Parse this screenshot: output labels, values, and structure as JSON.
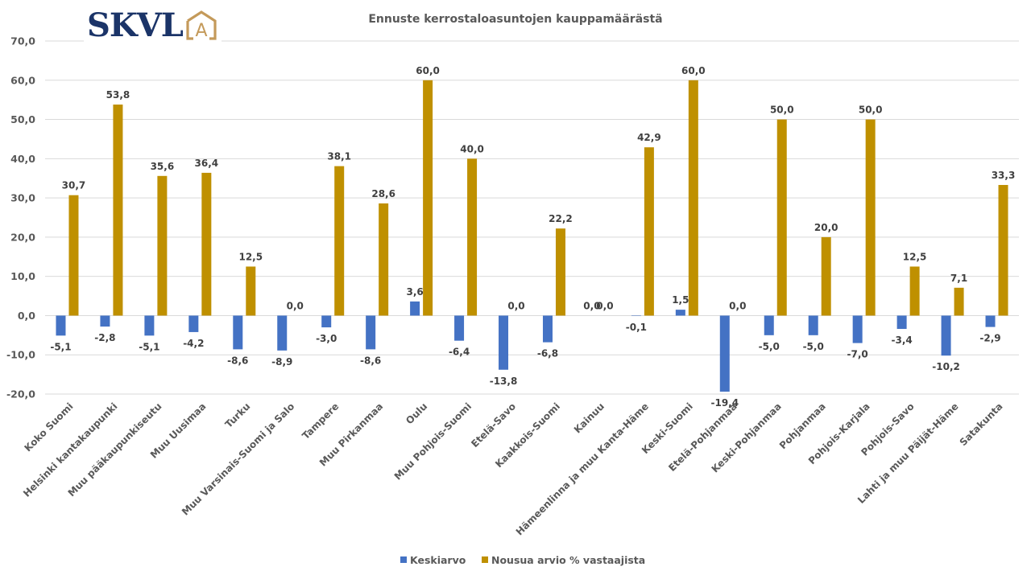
{
  "logo": {
    "text": "SKVL",
    "mark_letter": "A",
    "text_color": "#1b3468",
    "mark_color": "#c49a5a"
  },
  "chart_data": {
    "type": "bar",
    "title": "Ennuste kerrostaloasuntojen kauppamäärästä",
    "xlabel": "",
    "ylabel": "",
    "ylim": [
      -20,
      70
    ],
    "yticks": [
      -20,
      -10,
      0,
      10,
      20,
      30,
      40,
      50,
      60,
      70
    ],
    "ytick_labels": [
      "-20,0",
      "-10,0",
      "0,0",
      "10,0",
      "20,0",
      "30,0",
      "40,0",
      "50,0",
      "60,0",
      "70,0"
    ],
    "grid": true,
    "legend_position": "bottom",
    "categories": [
      "Koko Suomi",
      "Helsinki kantakaupunki",
      "Muu pääkaupunkiseutu",
      "Muu Uusimaa",
      "Turku",
      "Muu Varsinais-Suomi ja Salo",
      "Tampere",
      "Muu Pirkanmaa",
      "Oulu",
      "Muu Pohjois-Suomi",
      "Etelä-Savo",
      "Kaakkois-Suomi",
      "Kainuu",
      "Hämeenlinna ja muu Kanta-Häme",
      "Keski-Suomi",
      "Etelä-Pohjanmaa",
      "Keski-Pohjanmaa",
      "Pohjanmaa",
      "Pohjois-Karjala",
      "Pohjois-Savo",
      "Lahti ja muu Päijät-Häme",
      "Satakunta"
    ],
    "series": [
      {
        "name": "Keskiarvo",
        "color": "#4472c4",
        "values": [
          -5.1,
          -2.8,
          -5.1,
          -4.2,
          -8.6,
          -8.9,
          -3.0,
          -8.6,
          3.6,
          -6.4,
          -13.8,
          -6.8,
          0.0,
          -0.1,
          1.5,
          -19.4,
          -5.0,
          -5.0,
          -7.0,
          -3.4,
          -10.2,
          -2.9
        ],
        "labels": [
          "-5,1",
          "-2,8",
          "-5,1",
          "-4,2",
          "-8,6",
          "-8,9",
          "-3,0",
          "-8,6",
          "3,6",
          "-6,4",
          "-13,8",
          "-6,8",
          "0,0",
          "-0,1",
          "1,5",
          "-19,4",
          "-5,0",
          "-5,0",
          "-7,0",
          "-3,4",
          "-10,2",
          "-2,9"
        ]
      },
      {
        "name": "Nousua arvio % vastaajista",
        "color": "#bf9000",
        "values": [
          30.7,
          53.8,
          35.6,
          36.4,
          12.5,
          0.0,
          38.1,
          28.6,
          60.0,
          40.0,
          0.0,
          22.2,
          0.0,
          42.9,
          60.0,
          0.0,
          50.0,
          20.0,
          50.0,
          12.5,
          7.1,
          33.3
        ],
        "labels": [
          "30,7",
          "53,8",
          "35,6",
          "36,4",
          "12,5",
          "0,0",
          "38,1",
          "28,6",
          "60,0",
          "40,0",
          "0,0",
          "22,2",
          "0,0",
          "42,9",
          "60,0",
          "0,0",
          "50,0",
          "20,0",
          "50,0",
          "12,5",
          "7,1",
          "33,3"
        ]
      }
    ]
  }
}
